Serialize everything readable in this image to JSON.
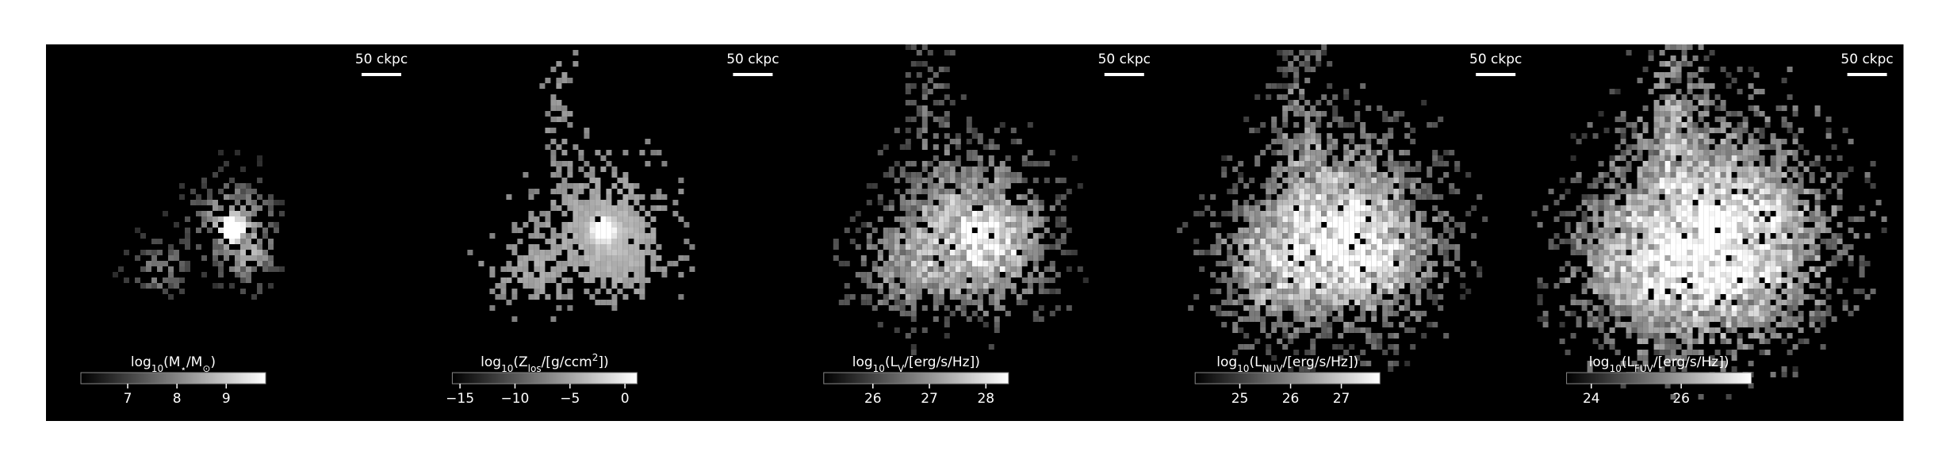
{
  "panels": [
    {
      "scale_bar": "50 ckpc",
      "colorbar": {
        "label": [
          {
            "text": "log"
          },
          {
            "text": "10",
            "sub": true
          },
          {
            "text": "(M"
          },
          {
            "text": "⋆",
            "sub": true
          },
          {
            "text": "/M"
          },
          {
            "text": "⊙",
            "sub": true
          },
          {
            "text": ")"
          }
        ],
        "clim": [
          6.05,
          9.8
        ],
        "ticks": [
          7,
          8,
          9
        ]
      }
    },
    {
      "scale_bar": "50 ckpc",
      "colorbar": {
        "label": [
          {
            "text": "log"
          },
          {
            "text": "10",
            "sub": true
          },
          {
            "text": "(Z"
          },
          {
            "text": "los",
            "sub": true
          },
          {
            "text": "/[g/ccm"
          },
          {
            "text": "2",
            "sup": true
          },
          {
            "text": "])"
          }
        ],
        "clim": [
          -15.7,
          1.1
        ],
        "ticks": [
          {
            "value": -15,
            "label": "−15"
          },
          {
            "value": -10,
            "label": "−10"
          },
          {
            "value": -5,
            "label": "−5"
          },
          0
        ]
      }
    },
    {
      "scale_bar": "50 ckpc",
      "colorbar": {
        "label": [
          {
            "text": "log"
          },
          {
            "text": "10",
            "sub": true
          },
          {
            "text": "(L"
          },
          {
            "text": "V",
            "sub": true
          },
          {
            "text": "/[erg/s/Hz])"
          }
        ],
        "clim": [
          25.13,
          28.4
        ],
        "ticks": [
          26,
          27,
          28
        ]
      }
    },
    {
      "scale_bar": "50 ckpc",
      "colorbar": {
        "label": [
          {
            "text": "log"
          },
          {
            "text": "10",
            "sub": true
          },
          {
            "text": "(L"
          },
          {
            "text": "NUV",
            "sub": true
          },
          {
            "text": "/[erg/s/Hz])"
          }
        ],
        "clim": [
          24.12,
          27.76
        ],
        "ticks": [
          25,
          26,
          27
        ]
      }
    },
    {
      "scale_bar": "50 ckpc",
      "colorbar": {
        "label": [
          {
            "text": "log"
          },
          {
            "text": "10",
            "sub": true
          },
          {
            "text": "(L"
          },
          {
            "text": "FUV",
            "sub": true
          },
          {
            "text": "/[erg/s/Hz])"
          }
        ],
        "clim": [
          23.45,
          27.56
        ],
        "ticks": [
          24,
          26
        ]
      }
    }
  ]
}
